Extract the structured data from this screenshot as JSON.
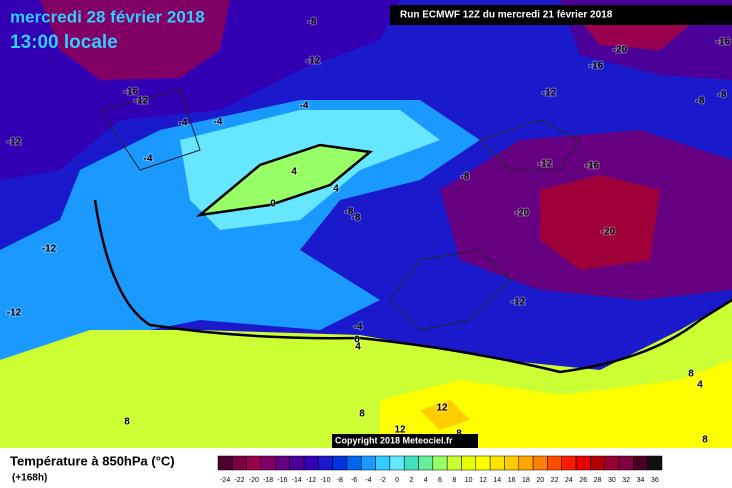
{
  "header": {
    "date": "mercredi 28 février 2018",
    "time": "13:00 locale",
    "run": "Run ECMWF 12Z du mercredi 21 février 2018"
  },
  "map": {
    "contour_labels": [
      -8,
      -12,
      -20,
      -16,
      -16,
      -16,
      -12,
      -12,
      -8,
      -8,
      -4,
      -4,
      -4,
      -12,
      -4,
      -16,
      -12,
      -8,
      4,
      4,
      0,
      -8,
      -8,
      -20,
      -20,
      -12,
      -12,
      -12,
      -4,
      0,
      4,
      8,
      4,
      8,
      8,
      12,
      12,
      8,
      8
    ],
    "copyright": "Copyright 2018 Meteociel.fr"
  },
  "legend": {
    "title": "Température à 850hPa (°C)",
    "lead": "(+168h)",
    "ticks": [
      -24,
      -22,
      -20,
      -18,
      -16,
      -14,
      -12,
      -10,
      -8,
      -6,
      -4,
      -2,
      0,
      2,
      4,
      6,
      8,
      10,
      12,
      14,
      16,
      18,
      20,
      22,
      24,
      26,
      28,
      30,
      32,
      34,
      36
    ],
    "colors": [
      "#4d0030",
      "#7a0040",
      "#990050",
      "#800066",
      "#660080",
      "#4d0099",
      "#3300b3",
      "#1a1acc",
      "#0033dd",
      "#0066ee",
      "#1a99ff",
      "#33ccff",
      "#66e6ff",
      "#40e0c0",
      "#66ee99",
      "#99ff66",
      "#ccff33",
      "#e6ff00",
      "#ffff00",
      "#ffe600",
      "#ffcc00",
      "#ffa600",
      "#ff8000",
      "#ff4d00",
      "#ff1a00",
      "#e60000",
      "#b30000",
      "#990033",
      "#800040",
      "#4d0026",
      "#111111"
    ]
  }
}
